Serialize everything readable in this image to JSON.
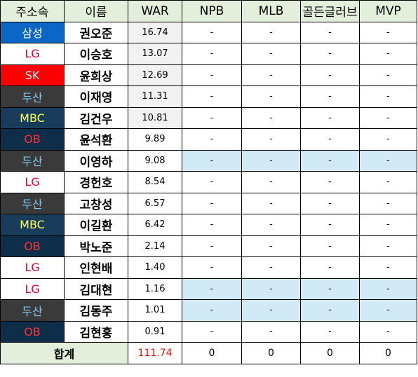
{
  "header": {
    "team": "주소속",
    "name": "이름",
    "war": "WAR",
    "npb": "NPB",
    "mlb": "MLB",
    "gg": "골든글러브",
    "mvp": "MVP"
  },
  "colors": {
    "samsung": "#0b67c6",
    "lg": "#ffffff",
    "lg_text": "#e4002b",
    "sk": "#ff0000",
    "doosan": "#3a3a3a",
    "doosan_text": "#7fc8f0",
    "mbc": "#173c5c",
    "mbc_text": "#ffff60",
    "ob": "#0d2d48",
    "ob_text": "#ff3030",
    "header_bg": "#e3efda",
    "highlight_bg": "#d2eaf5"
  },
  "rows": [
    {
      "team": "삼성",
      "name": "권오준",
      "war": "16.74",
      "npb": "-",
      "mlb": "-",
      "gg": "-",
      "mvp": "-"
    },
    {
      "team": "LG",
      "name": "이승호",
      "war": "13.07",
      "npb": "-",
      "mlb": "-",
      "gg": "-",
      "mvp": "-"
    },
    {
      "team": "SK",
      "name": "윤희상",
      "war": "12.69",
      "npb": "-",
      "mlb": "-",
      "gg": "-",
      "mvp": "-"
    },
    {
      "team": "두산",
      "name": "이재영",
      "war": "11.31",
      "npb": "-",
      "mlb": "-",
      "gg": "-",
      "mvp": "-"
    },
    {
      "team": "MBC",
      "name": "김건우",
      "war": "10.81",
      "npb": "-",
      "mlb": "-",
      "gg": "-",
      "mvp": "-"
    },
    {
      "team": "OB",
      "name": "윤석환",
      "war": "9.89",
      "npb": "-",
      "mlb": "-",
      "gg": "-",
      "mvp": "-"
    },
    {
      "team": "두산",
      "name": "이영하",
      "war": "9.08",
      "npb": "-",
      "mlb": "-",
      "gg": "-",
      "mvp": "-"
    },
    {
      "team": "LG",
      "name": "경헌호",
      "war": "8.54",
      "npb": "-",
      "mlb": "-",
      "gg": "-",
      "mvp": "-"
    },
    {
      "team": "두산",
      "name": "고창성",
      "war": "6.57",
      "npb": "-",
      "mlb": "-",
      "gg": "-",
      "mvp": "-"
    },
    {
      "team": "MBC",
      "name": "이길환",
      "war": "6.42",
      "npb": "-",
      "mlb": "-",
      "gg": "-",
      "mvp": "-"
    },
    {
      "team": "OB",
      "name": "박노준",
      "war": "2.14",
      "npb": "-",
      "mlb": "-",
      "gg": "-",
      "mvp": "-"
    },
    {
      "team": "LG",
      "name": "인현배",
      "war": "1.40",
      "npb": "-",
      "mlb": "-",
      "gg": "-",
      "mvp": "-"
    },
    {
      "team": "LG",
      "name": "김대현",
      "war": "1.16",
      "npb": "-",
      "mlb": "-",
      "gg": "-",
      "mvp": "-"
    },
    {
      "team": "두산",
      "name": "김동주",
      "war": "1.01",
      "npb": "-",
      "mlb": "-",
      "gg": "-",
      "mvp": "-"
    },
    {
      "team": "OB",
      "name": "김현홍",
      "war": "0.91",
      "npb": "-",
      "mlb": "-",
      "gg": "-",
      "mvp": "-"
    }
  ],
  "total": {
    "label": "합계",
    "war": "111.74",
    "npb": "0",
    "mlb": "0",
    "gg": "0",
    "mvp": "0"
  }
}
